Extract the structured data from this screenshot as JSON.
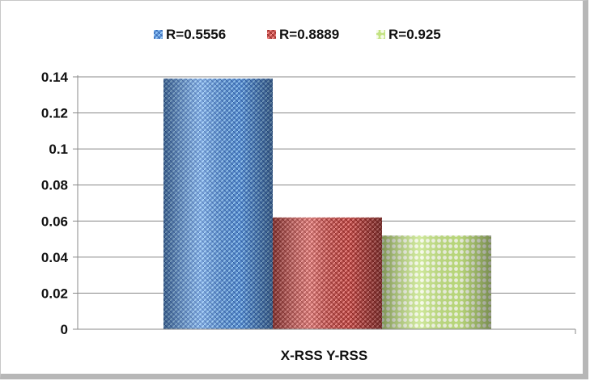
{
  "chart_data": {
    "type": "bar",
    "title": "",
    "xlabel": "",
    "ylabel": "",
    "categories": [
      "X-RSS Y-RSS"
    ],
    "series": [
      {
        "name": "R=0.5556",
        "values": [
          0.139
        ],
        "color": "#5b8fd6",
        "pattern": "weave"
      },
      {
        "name": "R=0.8889",
        "values": [
          0.062
        ],
        "color": "#c0504d",
        "pattern": "weave"
      },
      {
        "name": "R=0.925",
        "values": [
          0.052
        ],
        "color": "#9bbb59",
        "pattern": "dots"
      }
    ],
    "ylim": [
      0,
      0.14
    ],
    "yticks": [
      "0",
      "0.02",
      "0.04",
      "0.06",
      "0.08",
      "0.1",
      "0.12",
      "0.14"
    ],
    "grid": true,
    "legend_position": "top"
  }
}
